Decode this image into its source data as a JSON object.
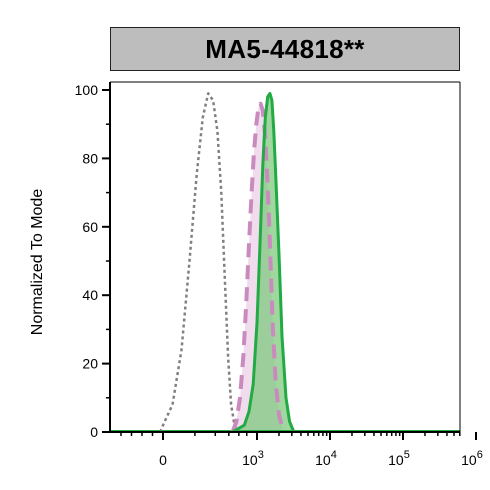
{
  "chart_data": {
    "type": "area",
    "title": "MA5-44818**",
    "ylabel": "Normalized To Mode",
    "xlabel": "",
    "x_scale": "biexponential",
    "xlim": [
      -700,
      1200000
    ],
    "ylim": [
      0,
      100
    ],
    "yticks": [
      0,
      20,
      40,
      60,
      80,
      100
    ],
    "xticks": [
      {
        "value": 0,
        "base": "0",
        "exp": ""
      },
      {
        "value": 1000,
        "base": "10",
        "exp": "3"
      },
      {
        "value": 10000,
        "base": "10",
        "exp": "4"
      },
      {
        "value": 100000,
        "base": "10",
        "exp": "5"
      },
      {
        "value": 1000000,
        "base": "10",
        "exp": "6"
      }
    ],
    "series": [
      {
        "style": "dotted",
        "color": "#808080",
        "fill": "none",
        "x": [
          -40,
          0,
          40,
          80,
          120,
          160,
          200,
          240,
          280,
          320,
          360,
          400,
          440,
          480,
          530,
          600
        ],
        "y": [
          0,
          2,
          8,
          24,
          50,
          75,
          92,
          99,
          97,
          88,
          70,
          45,
          22,
          8,
          2,
          0
        ]
      },
      {
        "style": "dashed",
        "color": "#c98bbd",
        "fill": "#eed3ea",
        "x": [
          500,
          560,
          620,
          680,
          740,
          800,
          860,
          920,
          980,
          1050,
          1120,
          1200,
          1300,
          1400,
          1500,
          1650,
          1800,
          2000,
          2300
        ],
        "y": [
          0,
          3,
          10,
          22,
          38,
          55,
          70,
          82,
          90,
          95,
          96,
          94,
          86,
          72,
          55,
          30,
          15,
          5,
          0
        ]
      },
      {
        "style": "solid",
        "color": "#22aa44",
        "fill": "#7fc97f",
        "x": [
          500,
          700,
          800,
          900,
          1000,
          1100,
          1200,
          1300,
          1400,
          1500,
          1600,
          1700,
          1800,
          2000,
          2200,
          2500,
          2800,
          3200
        ],
        "y": [
          0,
          2,
          6,
          14,
          32,
          55,
          78,
          92,
          98,
          99,
          97,
          88,
          76,
          52,
          28,
          10,
          3,
          0
        ]
      }
    ]
  }
}
